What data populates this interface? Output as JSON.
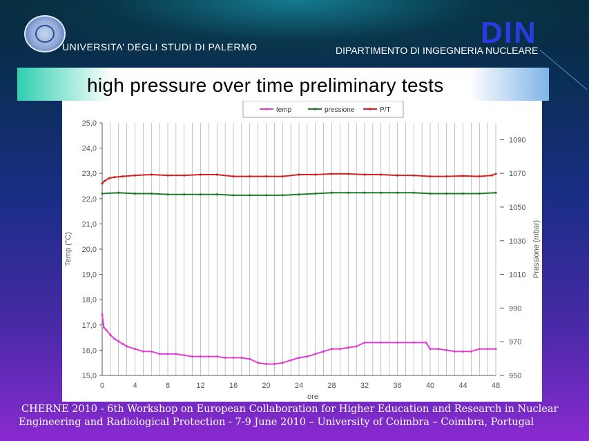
{
  "header": {
    "university": "UNIVERSITA’  DEGLI  STUDI  DI PALERMO",
    "din_logo": "DIN",
    "department": "DIPARTIMENTO DI  INGEGNERIA NUCLEARE"
  },
  "slide_title": "high pressure over time preliminary tests",
  "footer": {
    "line1": "CHERNE 2010 - 6th Workshop on European Collaboration for  Higher Education and Research in Nuclear",
    "line2": "Engineering and Radiological Protection  -  7-9  June 2010 – University of Coimbra – Coimbra, Portugal"
  },
  "colors": {
    "temp": "#e23fd3",
    "pressione": "#1f7a2d",
    "pt": "#d42020"
  },
  "chart_data": {
    "type": "line",
    "xlabel": "ore",
    "ylabel_left": "Temp (°C)",
    "ylabel_right": "Pressione (mbar)",
    "xlim": [
      0,
      48
    ],
    "ylim_left": [
      15,
      25
    ],
    "ylim_right": [
      950,
      1100
    ],
    "x_ticks": [
      "0",
      "4",
      "8",
      "12",
      "16",
      "20",
      "24",
      "28",
      "32",
      "36",
      "40",
      "44",
      "48"
    ],
    "y_left_ticks": [
      "25,0",
      "24,0",
      "23,0",
      "22,0",
      "21,0",
      "20,0",
      "19,0",
      "18,0",
      "17,0",
      "16,0",
      "15,0"
    ],
    "y_right_ticks": [
      "1090",
      "1070",
      "1050",
      "1030",
      "1010",
      "990",
      "970",
      "950"
    ],
    "legend": [
      "temp",
      "pressione",
      "P/T"
    ],
    "legend_position": "top",
    "grid": "vertical",
    "series": [
      {
        "name": "temp",
        "axis": "left",
        "x": [
          0,
          0.2,
          0.5,
          1,
          1.5,
          2,
          2.5,
          3,
          4,
          5,
          6,
          7,
          8,
          9,
          10,
          11,
          12,
          13,
          14,
          15,
          16,
          17,
          18,
          19,
          20,
          21,
          22,
          23,
          24,
          25,
          26,
          27,
          28,
          29,
          30,
          31,
          32,
          34,
          36,
          38,
          39.5,
          40,
          41,
          42,
          43,
          44,
          45,
          46,
          47,
          48
        ],
        "values": [
          17.4,
          16.9,
          16.8,
          16.6,
          16.45,
          16.35,
          16.25,
          16.15,
          16.05,
          15.95,
          15.95,
          15.85,
          15.85,
          15.85,
          15.8,
          15.75,
          15.75,
          15.75,
          15.75,
          15.7,
          15.7,
          15.7,
          15.65,
          15.5,
          15.45,
          15.45,
          15.5,
          15.6,
          15.7,
          15.75,
          15.85,
          15.95,
          16.05,
          16.05,
          16.1,
          16.15,
          16.3,
          16.3,
          16.3,
          16.3,
          16.3,
          16.05,
          16.05,
          16.0,
          15.95,
          15.95,
          15.95,
          16.05,
          16.05,
          16.05
        ]
      },
      {
        "name": "pressione",
        "axis": "right",
        "x": [
          0,
          2,
          4,
          6,
          8,
          10,
          12,
          14,
          16,
          18,
          20,
          22,
          24,
          26,
          28,
          30,
          32,
          34,
          36,
          38,
          40,
          42,
          44,
          46,
          48
        ],
        "values": [
          1058,
          1058.5,
          1058,
          1058,
          1057.5,
          1057.5,
          1057.5,
          1057.5,
          1057,
          1057,
          1057,
          1057,
          1057.5,
          1058,
          1058.5,
          1058.5,
          1058.5,
          1058.5,
          1058.5,
          1058.5,
          1058,
          1058,
          1058,
          1058,
          1058.5
        ]
      },
      {
        "name": "P/T",
        "axis": "left",
        "x": [
          0,
          0.3,
          0.8,
          1.5,
          2.5,
          4,
          6,
          8,
          10,
          12,
          14,
          16,
          18,
          20,
          22,
          24,
          26,
          28,
          30,
          32,
          34,
          36,
          38,
          40,
          42,
          44,
          46,
          47.5,
          48
        ],
        "values": [
          22.6,
          22.7,
          22.8,
          22.85,
          22.88,
          22.92,
          22.95,
          22.92,
          22.92,
          22.95,
          22.95,
          22.88,
          22.88,
          22.88,
          22.88,
          22.95,
          22.95,
          22.98,
          22.98,
          22.95,
          22.95,
          22.92,
          22.92,
          22.88,
          22.88,
          22.9,
          22.88,
          22.92,
          22.98
        ]
      }
    ]
  }
}
